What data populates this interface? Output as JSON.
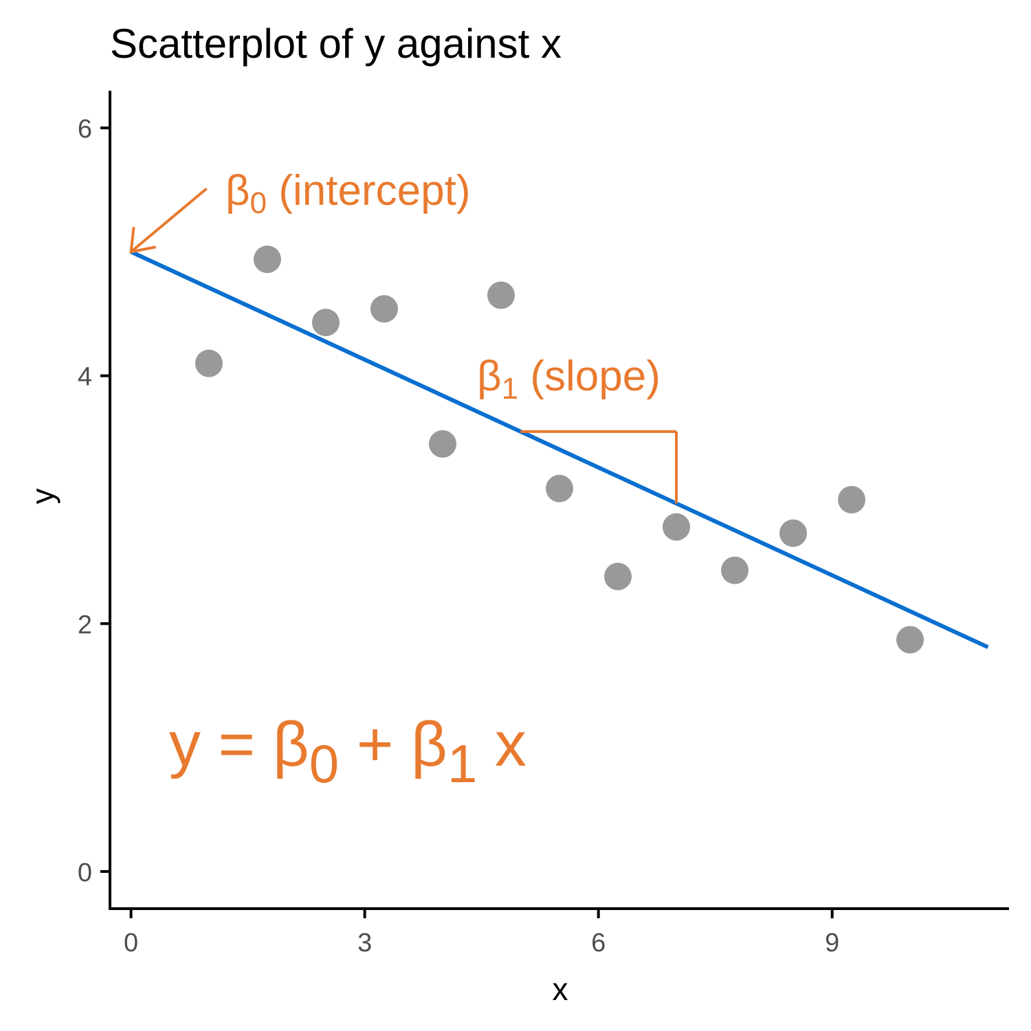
{
  "chart_data": {
    "type": "scatter",
    "title": "Scatterplot of y against x",
    "xlabel": "x",
    "ylabel": "y",
    "xlim": [
      -0.27,
      11.27
    ],
    "ylim": [
      -0.3,
      6.3
    ],
    "x_ticks": [
      0,
      3,
      6,
      9
    ],
    "y_ticks": [
      0,
      2,
      4,
      6
    ],
    "grid": false,
    "legend": "none",
    "series": [
      {
        "x": [
          1.0,
          1.75,
          2.5,
          3.25,
          4.0,
          4.75,
          5.5,
          6.25,
          7.0,
          7.75,
          8.5,
          9.25,
          10.0
        ],
        "y": [
          4.1,
          4.94,
          4.43,
          4.54,
          3.45,
          4.65,
          3.09,
          2.38,
          2.78,
          2.43,
          2.73,
          3.0,
          1.87
        ]
      }
    ],
    "fit_line": {
      "intercept": 5.0,
      "slope": -0.29,
      "x_range": [
        0,
        11
      ]
    },
    "annotations": {
      "intercept": {
        "beta": "β",
        "sub": "0",
        "text": " (intercept)"
      },
      "slope": {
        "beta": "β",
        "sub": "1",
        "text": " (slope)",
        "x_from": 5,
        "x_to": 7
      },
      "equation": {
        "y": "y = ",
        "b0": "β",
        "sub0": "0",
        "plus": " + ",
        "b1": "β",
        "sub1": "1",
        "x": " x"
      }
    },
    "colors": {
      "points": "#999999",
      "line": "#0a6fcf",
      "annotation": "#e87a2f",
      "axis": "#000000",
      "tick_label": "#4d4d4d"
    }
  }
}
